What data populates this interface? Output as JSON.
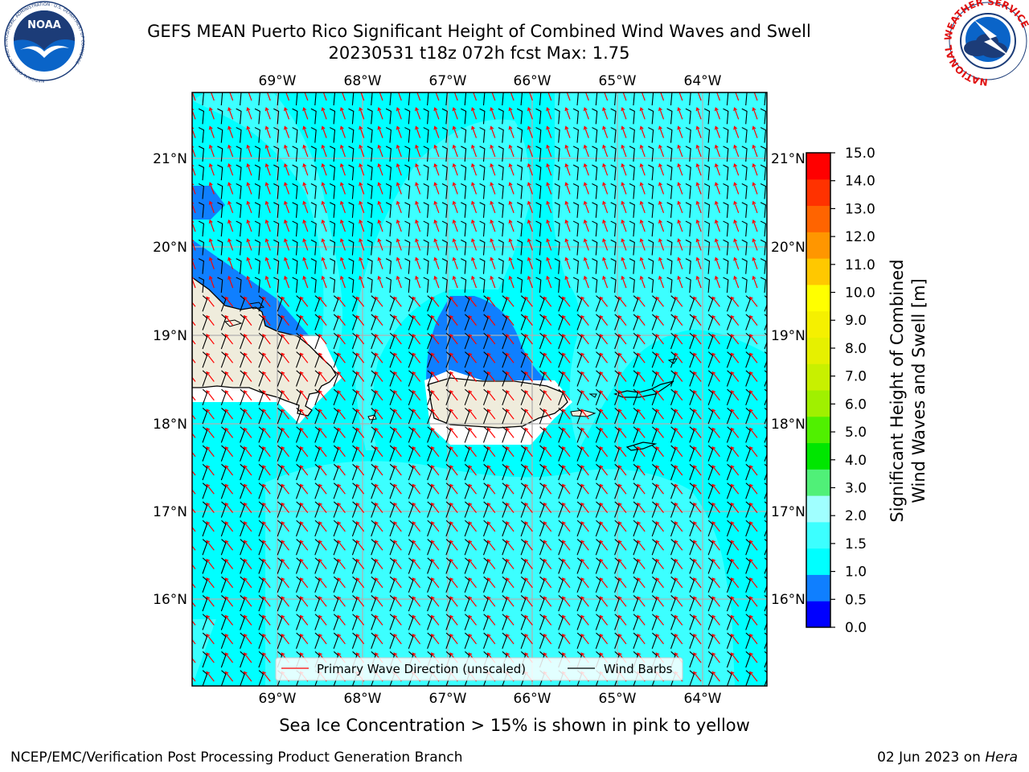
{
  "title": {
    "line1": "GEFS MEAN Puerto Rico Significant Height of Combined Wind Waves and Swell",
    "line2": "20230531 t18z 072h fcst   Max: 1.75"
  },
  "note": "Sea Ice Concentration > 15% is shown in pink to yellow",
  "footer": {
    "left": "NCEP/EMC/Verification Post Processing Product Generation Branch",
    "date": "02 Jun 2023 on ",
    "machine": "Hera"
  },
  "logos": {
    "noaa": {
      "text": "NOAA",
      "ring_text": "NATIONAL OCEANIC AND ATMOSPHERIC ADMINISTRATION · U.S. DEPARTMENT OF COMMERCE"
    },
    "nws": {
      "ring_text": "NATIONAL WEATHER SERVICE"
    }
  },
  "map": {
    "lon_labels": [
      "69°W",
      "68°W",
      "67°W",
      "66°W",
      "65°W",
      "64°W"
    ],
    "lat_labels": [
      "21°N",
      "20°N",
      "19°N",
      "18°N",
      "17°N",
      "16°N"
    ],
    "colors": {
      "land": "#efecdc",
      "ocean_1_0_1_5": "#00ffff",
      "ocean_1_5_2_0": "#3cffff",
      "ocean_0_5_1_0": "#0f7fff",
      "grid": "#b0b0b0",
      "wave_arrow": "#ff0000",
      "wind_barb": "#000000"
    }
  },
  "legend": {
    "wave": "Primary Wave Direction (unscaled)",
    "wind": "Wind Barbs"
  },
  "colorbar": {
    "label_line1": "Significant Height of Combined",
    "label_line2": "Wind Waves and Swell [m]",
    "ticks": [
      "15.0",
      "14.0",
      "13.0",
      "12.0",
      "11.0",
      "10.0",
      "9.0",
      "8.0",
      "7.0",
      "6.0",
      "5.0",
      "4.0",
      "3.0",
      "2.0",
      "1.5",
      "1.0",
      "0.5",
      "0.0"
    ],
    "colors": [
      "#0000ff",
      "#0f7fff",
      "#00ffff",
      "#3cffff",
      "#a0ffff",
      "#50f078",
      "#00e600",
      "#50f000",
      "#a0f000",
      "#c8f000",
      "#e6f000",
      "#f5f000",
      "#ffff00",
      "#ffc800",
      "#ff9600",
      "#ff6400",
      "#ff3200",
      "#ff0000"
    ]
  }
}
